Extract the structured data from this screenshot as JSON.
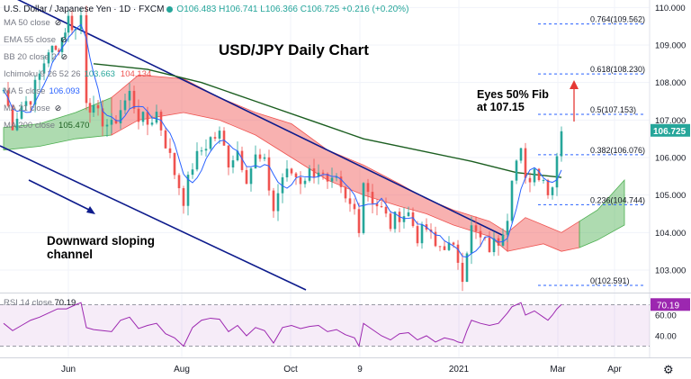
{
  "header": {
    "symbol": "U.S. Dollar / Japanese Yen · 1D · FXCM",
    "ohlc": "O106.483 H106.741 L106.366 C106.725 +0.216 (+0.20%)"
  },
  "indicators": [
    {
      "label": "MA 50 close",
      "value": "",
      "hidden": true
    },
    {
      "label": "EMA 55 close",
      "value": "",
      "hidden": true
    },
    {
      "label": "BB 20 close 2",
      "value": "",
      "hidden": true
    },
    {
      "label": "Ichimoku 9 26 52 26",
      "value": "103.663",
      "value2": "104.134"
    },
    {
      "label": "MA 5 close",
      "value": "106.093"
    },
    {
      "label": "MA 21 close",
      "value": "",
      "hidden": true
    },
    {
      "label": "MA 200 close",
      "value": "105.470"
    }
  ],
  "title": "USD/JPY Daily Chart",
  "annotations": {
    "fib_note_line1": "Eyes 50% Fib",
    "fib_note_line2": "at 107.15",
    "channel_note_line1": "Downward sloping",
    "channel_note_line2": "channel"
  },
  "rsi_label": "RSI 14 close",
  "rsi_value": "70.19",
  "colors": {
    "up": "#26a69a",
    "down": "#ef5350",
    "ma200": "#1b5e20",
    "ma5": "#2962ff",
    "channel": "#0d1b8c",
    "cloud_bear": "#ef5350",
    "cloud_bull": "#4caf50",
    "fib": "#2962ff",
    "rsi": "#9c27b0",
    "arrow": "#e53935",
    "price_tag": "#26a69a"
  },
  "chart_data": {
    "type": "candlestick",
    "title": "USD/JPY Daily Chart",
    "ylim": [
      102.4,
      110.2
    ],
    "y_ticks": [
      103.0,
      104.0,
      105.0,
      106.0,
      107.0,
      108.0,
      109.0,
      110.0
    ],
    "x_ticks": [
      "Jun",
      "Aug",
      "Oct",
      "9",
      "2021",
      "Mar",
      "Apr"
    ],
    "last_price": "106.725",
    "fib_levels": [
      {
        "ratio": "0.764",
        "price": 109.562,
        "label": "0.764(109.562)"
      },
      {
        "ratio": "0.618",
        "price": 108.23,
        "label": "0.618(108.230)"
      },
      {
        "ratio": "0.5",
        "price": 107.153,
        "label": "0.5(107.153)"
      },
      {
        "ratio": "0.382",
        "price": 106.076,
        "label": "0.382(106.076)"
      },
      {
        "ratio": "0.236",
        "price": 104.744,
        "label": "0.236(104.744)"
      },
      {
        "ratio": "0",
        "price": 102.591,
        "label": "0(102.591)"
      }
    ],
    "close_path": [
      [
        0,
        107.8
      ],
      [
        10,
        106.9
      ],
      [
        20,
        107.4
      ],
      [
        30,
        107.6
      ],
      [
        40,
        108.2
      ],
      [
        50,
        108.9
      ],
      [
        58,
        108.8
      ],
      [
        65,
        109.2
      ],
      [
        72,
        109.7
      ],
      [
        80,
        109.4
      ],
      [
        86,
        109.8
      ],
      [
        92,
        107.6
      ],
      [
        100,
        107.2
      ],
      [
        110,
        107.0
      ],
      [
        120,
        106.8
      ],
      [
        130,
        107.3
      ],
      [
        140,
        107.7
      ],
      [
        150,
        107.1
      ],
      [
        160,
        106.9
      ],
      [
        170,
        107.2
      ],
      [
        180,
        106.4
      ],
      [
        190,
        105.6
      ],
      [
        200,
        104.9
      ],
      [
        210,
        105.8
      ],
      [
        220,
        106.2
      ],
      [
        230,
        106.5
      ],
      [
        240,
        106.6
      ],
      [
        250,
        105.9
      ],
      [
        260,
        106.2
      ],
      [
        270,
        105.5
      ],
      [
        280,
        106.0
      ],
      [
        290,
        105.8
      ],
      [
        300,
        104.6
      ],
      [
        310,
        105.5
      ],
      [
        320,
        105.6
      ],
      [
        330,
        105.4
      ],
      [
        340,
        105.6
      ],
      [
        350,
        105.7
      ],
      [
        360,
        105.2
      ],
      [
        370,
        105.3
      ],
      [
        380,
        104.8
      ],
      [
        390,
        104.6
      ],
      [
        395,
        104.2
      ],
      [
        400,
        105.4
      ],
      [
        410,
        104.9
      ],
      [
        420,
        104.6
      ],
      [
        430,
        104.2
      ],
      [
        440,
        104.5
      ],
      [
        450,
        104.5
      ],
      [
        460,
        103.9
      ],
      [
        470,
        104.1
      ],
      [
        480,
        103.6
      ],
      [
        490,
        103.7
      ],
      [
        500,
        103.5
      ],
      [
        505,
        103.3
      ],
      [
        510,
        102.9
      ],
      [
        515,
        103.6
      ],
      [
        520,
        104.1
      ],
      [
        530,
        103.8
      ],
      [
        540,
        103.6
      ],
      [
        550,
        103.8
      ],
      [
        560,
        104.5
      ],
      [
        565,
        105.6
      ],
      [
        570,
        105.9
      ],
      [
        575,
        106.1
      ],
      [
        580,
        105.3
      ],
      [
        590,
        105.7
      ],
      [
        600,
        105.5
      ],
      [
        605,
        105.0
      ],
      [
        610,
        105.4
      ],
      [
        615,
        106.1
      ],
      [
        620,
        106.7
      ]
    ],
    "ma200_path": [
      [
        100,
        108.5
      ],
      [
        160,
        108.35
      ],
      [
        220,
        108.0
      ],
      [
        280,
        107.5
      ],
      [
        340,
        107.0
      ],
      [
        400,
        106.5
      ],
      [
        460,
        106.2
      ],
      [
        520,
        105.9
      ],
      [
        570,
        105.6
      ],
      [
        620,
        105.47
      ]
    ],
    "cloud_upper": [
      [
        0,
        106.8
      ],
      [
        40,
        106.9
      ],
      [
        80,
        107.2
      ],
      [
        120,
        107.6
      ],
      [
        150,
        108.2
      ],
      [
        200,
        108.1
      ],
      [
        240,
        107.6
      ],
      [
        280,
        107.2
      ],
      [
        320,
        106.9
      ],
      [
        360,
        106.2
      ],
      [
        400,
        105.8
      ],
      [
        440,
        105.3
      ],
      [
        470,
        104.9
      ],
      [
        500,
        104.6
      ],
      [
        540,
        104.3
      ],
      [
        560,
        104.0
      ],
      [
        580,
        104.4
      ],
      [
        600,
        104.2
      ],
      [
        620,
        104.0
      ],
      [
        640,
        104.3
      ],
      [
        660,
        104.6
      ],
      [
        690,
        105.4
      ]
    ],
    "cloud_lower": [
      [
        0,
        106.2
      ],
      [
        40,
        106.3
      ],
      [
        80,
        106.5
      ],
      [
        120,
        106.6
      ],
      [
        150,
        107.0
      ],
      [
        200,
        107.2
      ],
      [
        240,
        107.0
      ],
      [
        280,
        106.6
      ],
      [
        320,
        106.0
      ],
      [
        360,
        105.4
      ],
      [
        400,
        105.0
      ],
      [
        440,
        104.7
      ],
      [
        470,
        104.5
      ],
      [
        500,
        104.2
      ],
      [
        540,
        103.9
      ],
      [
        560,
        103.5
      ],
      [
        580,
        103.6
      ],
      [
        600,
        103.7
      ],
      [
        620,
        103.5
      ],
      [
        640,
        103.6
      ],
      [
        660,
        103.8
      ],
      [
        690,
        104.2
      ]
    ],
    "rsi": {
      "label": "RSI 14 close",
      "value": 70.19,
      "levels": [
        30,
        70
      ],
      "ticks": [
        40.0,
        60.0
      ],
      "path": [
        [
          0,
          52
        ],
        [
          10,
          45
        ],
        [
          20,
          50
        ],
        [
          30,
          55
        ],
        [
          40,
          58
        ],
        [
          50,
          62
        ],
        [
          60,
          66
        ],
        [
          70,
          66
        ],
        [
          80,
          70
        ],
        [
          86,
          72
        ],
        [
          92,
          48
        ],
        [
          100,
          46
        ],
        [
          110,
          45
        ],
        [
          120,
          44
        ],
        [
          130,
          55
        ],
        [
          140,
          58
        ],
        [
          150,
          47
        ],
        [
          160,
          50
        ],
        [
          170,
          52
        ],
        [
          180,
          42
        ],
        [
          190,
          38
        ],
        [
          200,
          30
        ],
        [
          210,
          48
        ],
        [
          220,
          55
        ],
        [
          230,
          57
        ],
        [
          240,
          56
        ],
        [
          250,
          44
        ],
        [
          260,
          50
        ],
        [
          270,
          40
        ],
        [
          280,
          48
        ],
        [
          290,
          45
        ],
        [
          300,
          33
        ],
        [
          310,
          48
        ],
        [
          320,
          50
        ],
        [
          330,
          47
        ],
        [
          340,
          49
        ],
        [
          350,
          50
        ],
        [
          360,
          44
        ],
        [
          370,
          46
        ],
        [
          380,
          41
        ],
        [
          390,
          38
        ],
        [
          395,
          30
        ],
        [
          400,
          52
        ],
        [
          410,
          46
        ],
        [
          420,
          40
        ],
        [
          430,
          36
        ],
        [
          440,
          42
        ],
        [
          450,
          43
        ],
        [
          460,
          36
        ],
        [
          470,
          40
        ],
        [
          480,
          34
        ],
        [
          490,
          38
        ],
        [
          500,
          36
        ],
        [
          505,
          34
        ],
        [
          510,
          33
        ],
        [
          515,
          45
        ],
        [
          520,
          55
        ],
        [
          530,
          52
        ],
        [
          540,
          50
        ],
        [
          550,
          52
        ],
        [
          560,
          62
        ],
        [
          565,
          68
        ],
        [
          570,
          70
        ],
        [
          575,
          72
        ],
        [
          580,
          60
        ],
        [
          590,
          64
        ],
        [
          600,
          58
        ],
        [
          605,
          55
        ],
        [
          610,
          60
        ],
        [
          615,
          66
        ],
        [
          620,
          70.19
        ]
      ]
    }
  }
}
